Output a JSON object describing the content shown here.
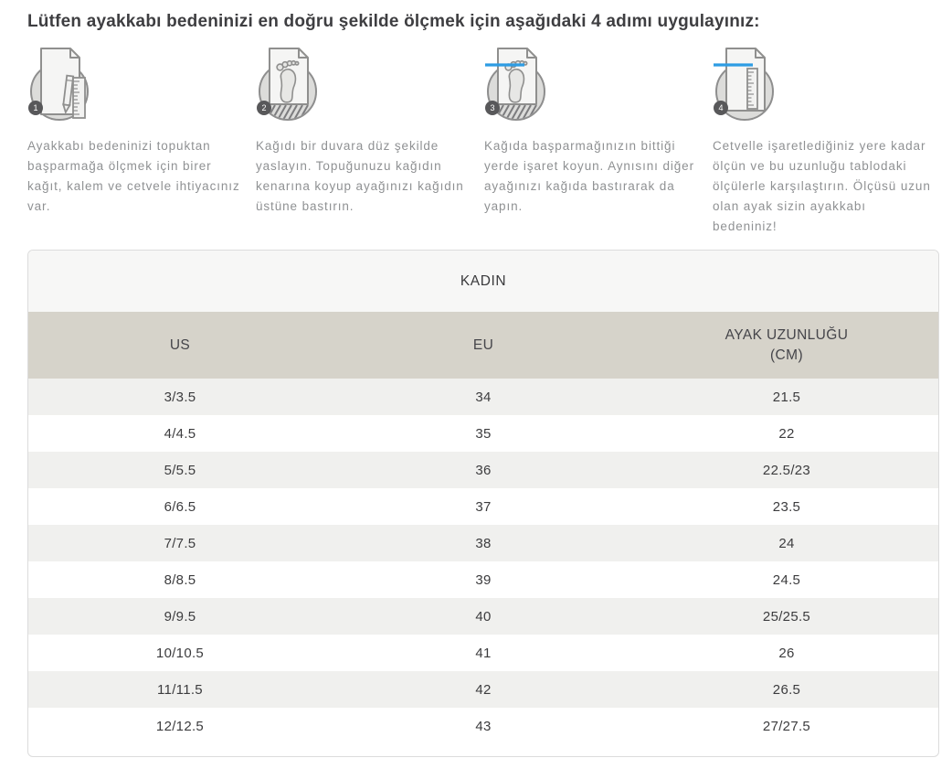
{
  "page": {
    "title": "Lütfen ayakkabı bedeninizi en doğru şekilde ölçmek için aşağıdaki 4 adımı uygulayınız:"
  },
  "colors": {
    "accent_blue": "#2d9ce3",
    "badge_gray": "#58585a",
    "step_text_gray": "#8f9193",
    "table_header_beige": "#d6d3ca",
    "row_alt_gray": "#f0f0ee",
    "group_band_gray": "#f7f7f6"
  },
  "steps": [
    {
      "number": "1",
      "icon": "paper-pencil-ruler-icon",
      "text": "Ayakkabı bedeninizi topuktan başparmağa ölçmek için birer kağıt, kalem ve cetvele ihtiyacınız var."
    },
    {
      "number": "2",
      "icon": "paper-footprint-icon",
      "text": "Kağıdı bir duvara düz şekilde yaslayın. Topuğunuzu kağıdın kenarına koyup ayağınızı kağıdın üstüne bastırın."
    },
    {
      "number": "3",
      "icon": "paper-footprint-marked-icon",
      "text": "Kağıda başparmağınızın bittiği yerde işaret koyun. Aynısını diğer ayağınızı kağıda bastırarak da yapın."
    },
    {
      "number": "4",
      "icon": "paper-ruler-measure-icon",
      "text": "Cetvelle işaretlediğiniz yere kadar ölçün ve bu uzunluğu tablodaki ölçülerle karşılaştırın. Ölçüsü uzun olan ayak sizin ayakkabı bedeniniz!"
    }
  ],
  "size_table": {
    "group_title": "KADIN",
    "columns": [
      "US",
      "EU",
      "AYAK UZUNLUĞU\n(CM)"
    ],
    "rows": [
      [
        "3/3.5",
        "34",
        "21.5"
      ],
      [
        "4/4.5",
        "35",
        "22"
      ],
      [
        "5/5.5",
        "36",
        "22.5/23"
      ],
      [
        "6/6.5",
        "37",
        "23.5"
      ],
      [
        "7/7.5",
        "38",
        "24"
      ],
      [
        "8/8.5",
        "39",
        "24.5"
      ],
      [
        "9/9.5",
        "40",
        "25/25.5"
      ],
      [
        "10/10.5",
        "41",
        "26"
      ],
      [
        "11/11.5",
        "42",
        "26.5"
      ],
      [
        "12/12.5",
        "43",
        "27/27.5"
      ]
    ]
  }
}
